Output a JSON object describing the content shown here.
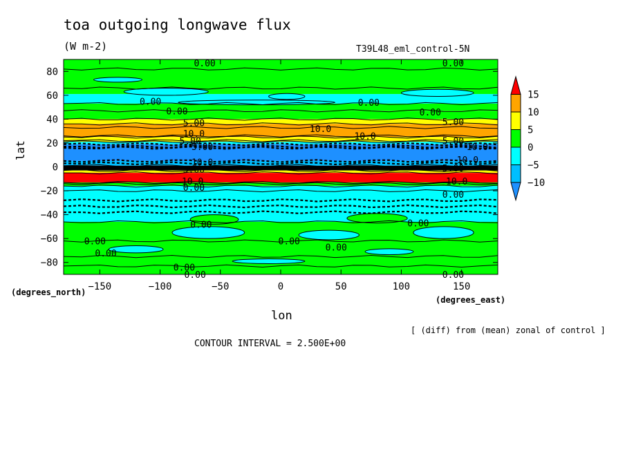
{
  "title": "toa outgoing longwave flux",
  "units": "(W m-2)",
  "run_name": "T39L48_eml_control-5N",
  "footnote": "[ (diff) from (mean) zonal of control ]",
  "contour_interval": "CONTOUR INTERVAL = 2.500E+00",
  "chart_data": {
    "type": "heatmap",
    "xlabel": "lon",
    "ylabel": "lat",
    "x_unit_label": "(degrees_east)",
    "y_unit_label": "(degrees_north)",
    "xlim": [
      -180,
      180
    ],
    "ylim": [
      -90,
      90
    ],
    "x_ticks": [
      -150,
      -100,
      -50,
      0,
      50,
      100,
      150
    ],
    "y_ticks": [
      80,
      60,
      40,
      20,
      0,
      -20,
      -40,
      -60,
      -80
    ],
    "x_tick_labels": [
      "−150",
      "−100",
      "−50",
      "0",
      "50",
      "100",
      "150"
    ],
    "y_tick_labels": [
      "80",
      "60",
      "40",
      "20",
      "0",
      "−20",
      "−40",
      "−60",
      "−80"
    ],
    "colorbar": {
      "ticks": [
        15,
        10,
        5,
        0,
        -5,
        -10
      ],
      "tick_labels": [
        "15",
        "10",
        "5",
        "0",
        "−5",
        "−10"
      ],
      "levels": [
        -15,
        -10,
        -5,
        0,
        5,
        10,
        15,
        20
      ],
      "colors": [
        "#1e90ff",
        "#00bfff",
        "#00ffff",
        "#00ff00",
        "#ffff00",
        "#ffa500",
        "#ff0000"
      ]
    },
    "zonal_bands": [
      {
        "lat_top": 90,
        "lat_bottom": 61,
        "value": 1
      },
      {
        "lat_top": 61,
        "lat_bottom": 53,
        "value": -2
      },
      {
        "lat_top": 53,
        "lat_bottom": 47,
        "value": 1
      },
      {
        "lat_top": 47,
        "lat_bottom": 40,
        "value": 3
      },
      {
        "lat_top": 40,
        "lat_bottom": 36,
        "value": 6
      },
      {
        "lat_top": 36,
        "lat_bottom": 25,
        "value": 11
      },
      {
        "lat_top": 25,
        "lat_bottom": 21,
        "value": 6
      },
      {
        "lat_top": 21,
        "lat_bottom": 19,
        "value": -3
      },
      {
        "lat_top": 19,
        "lat_bottom": 5,
        "value": -12
      },
      {
        "lat_top": 5,
        "lat_bottom": 1,
        "value": -6
      },
      {
        "lat_top": 1,
        "lat_bottom": -3,
        "value": -20
      },
      {
        "lat_top": -3,
        "lat_bottom": -5,
        "value": 6
      },
      {
        "lat_top": -5,
        "lat_bottom": -13,
        "value": 18
      },
      {
        "lat_top": -13,
        "lat_bottom": -16,
        "value": 2
      },
      {
        "lat_top": -16,
        "lat_bottom": -20,
        "value": -1
      },
      {
        "lat_top": -20,
        "lat_bottom": -46,
        "value": -3
      },
      {
        "lat_top": -46,
        "lat_bottom": -90,
        "value": 1
      }
    ],
    "patches": [
      {
        "lon": -95,
        "lat": 63,
        "w": 70,
        "h": 6,
        "value": -2
      },
      {
        "lon": 5,
        "lat": 59,
        "w": 30,
        "h": 5,
        "value": -2
      },
      {
        "lon": -20,
        "lat": 54,
        "w": 130,
        "h": 4,
        "value": -2
      },
      {
        "lon": 130,
        "lat": 62,
        "w": 60,
        "h": 6,
        "value": -2
      },
      {
        "lon": -135,
        "lat": 73,
        "w": 40,
        "h": 4,
        "value": -2
      },
      {
        "lon": -55,
        "lat": -44,
        "w": 40,
        "h": 8,
        "value": 1
      },
      {
        "lon": 80,
        "lat": -43,
        "w": 50,
        "h": 8,
        "value": 1
      },
      {
        "lon": -60,
        "lat": -55,
        "w": 60,
        "h": 10,
        "value": -3
      },
      {
        "lon": 40,
        "lat": -57,
        "w": 50,
        "h": 8,
        "value": -3
      },
      {
        "lon": 135,
        "lat": -55,
        "w": 50,
        "h": 10,
        "value": -3
      },
      {
        "lon": -120,
        "lat": -69,
        "w": 45,
        "h": 6,
        "value": -3
      },
      {
        "lon": 90,
        "lat": -71,
        "w": 40,
        "h": 5,
        "value": -3
      },
      {
        "lon": -10,
        "lat": -79,
        "w": 60,
        "h": 4,
        "value": -3
      }
    ],
    "contour_lines": [
      {
        "lat": 82,
        "dashed": false
      },
      {
        "lat": 66,
        "dashed": false
      },
      {
        "lat": 53,
        "dashed": false
      },
      {
        "lat": 47,
        "dashed": false
      },
      {
        "lat": 40,
        "dashed": false
      },
      {
        "lat": 36,
        "dashed": false
      },
      {
        "lat": 33,
        "dashed": false
      },
      {
        "lat": 26,
        "dashed": false
      },
      {
        "lat": 25,
        "dashed": false
      },
      {
        "lat": 22,
        "dashed": false
      },
      {
        "lat": 21,
        "dashed": false
      },
      {
        "lat": 19,
        "dashed": true
      },
      {
        "lat": 17,
        "dashed": true
      },
      {
        "lat": 16,
        "dashed": true
      },
      {
        "lat": 5,
        "dashed": true
      },
      {
        "lat": 3,
        "dashed": true
      },
      {
        "lat": 1,
        "dashed": false
      },
      {
        "lat": -1,
        "dashed": false
      },
      {
        "lat": -3,
        "dashed": false
      },
      {
        "lat": -5,
        "dashed": false
      },
      {
        "lat": -13,
        "dashed": false
      },
      {
        "lat": -14,
        "dashed": false
      },
      {
        "lat": -16,
        "dashed": false
      },
      {
        "lat": -20,
        "dashed": false
      },
      {
        "lat": -28,
        "dashed": true
      },
      {
        "lat": -33,
        "dashed": true
      },
      {
        "lat": -38,
        "dashed": true
      },
      {
        "lat": -46,
        "dashed": false
      },
      {
        "lat": -62,
        "dashed": false
      },
      {
        "lat": -75,
        "dashed": false
      },
      {
        "lat": -83,
        "dashed": false
      }
    ],
    "contour_labels": [
      {
        "text": "0.00",
        "lon": -63,
        "lat": 87
      },
      {
        "text": "0.00",
        "lon": 143,
        "lat": 87
      },
      {
        "text": "0.00",
        "lon": -108,
        "lat": 55
      },
      {
        "text": "0.00",
        "lon": 73,
        "lat": 54
      },
      {
        "text": "0.00",
        "lon": -86,
        "lat": 47
      },
      {
        "text": "0.00",
        "lon": 124,
        "lat": 46
      },
      {
        "text": "5.00",
        "lon": -72,
        "lat": 37
      },
      {
        "text": "5.00",
        "lon": 143,
        "lat": 38
      },
      {
        "text": "10.0",
        "lon": -72,
        "lat": 28
      },
      {
        "text": "10.0",
        "lon": 33,
        "lat": 32
      },
      {
        "text": "10.0",
        "lon": 70,
        "lat": 26
      },
      {
        "text": "5.00",
        "lon": -75,
        "lat": 22
      },
      {
        "text": "5.00",
        "lon": 143,
        "lat": 22
      },
      {
        "text": "10.0",
        "lon": 163,
        "lat": 17
      },
      {
        "text": "5.00",
        "lon": -65,
        "lat": 17
      },
      {
        "text": "10.0",
        "lon": -65,
        "lat": 4
      },
      {
        "text": "10.0",
        "lon": 155,
        "lat": 6
      },
      {
        "text": "5.00",
        "lon": -72,
        "lat": -2
      },
      {
        "text": "5.00",
        "lon": 143,
        "lat": -1
      },
      {
        "text": "10.0",
        "lon": -73,
        "lat": -12
      },
      {
        "text": "10.0",
        "lon": 146,
        "lat": -12
      },
      {
        "text": "0.00",
        "lon": -72,
        "lat": -17
      },
      {
        "text": "0.00",
        "lon": 143,
        "lat": -23
      },
      {
        "text": "0.00",
        "lon": -66,
        "lat": -48
      },
      {
        "text": "0.00",
        "lon": 114,
        "lat": -47
      },
      {
        "text": "0.00",
        "lon": -154,
        "lat": -62
      },
      {
        "text": "0.00",
        "lon": 7,
        "lat": -62
      },
      {
        "text": "0.00",
        "lon": 46,
        "lat": -67
      },
      {
        "text": "0.00",
        "lon": -145,
        "lat": -72
      },
      {
        "text": "0.00",
        "lon": -80,
        "lat": -84
      },
      {
        "text": "0.00",
        "lon": -71,
        "lat": -90
      },
      {
        "text": "0.00",
        "lon": 143,
        "lat": -90
      }
    ]
  }
}
